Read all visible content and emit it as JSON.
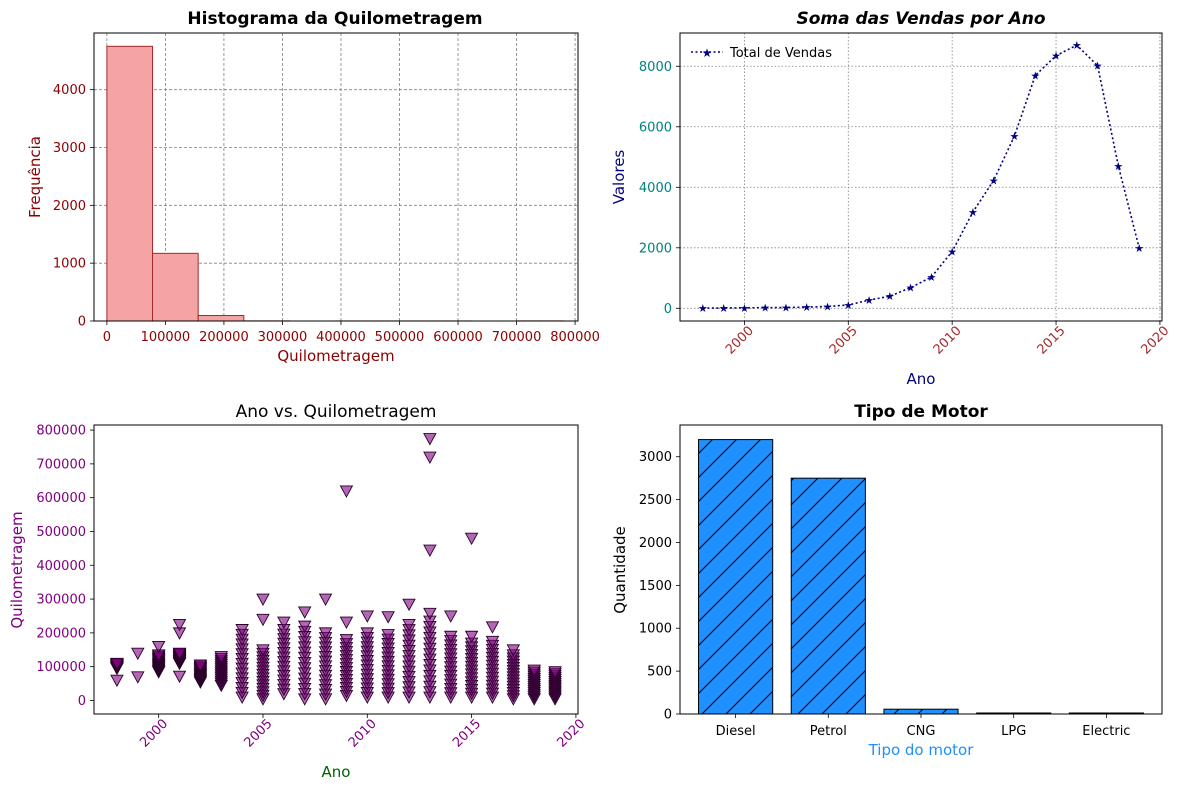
{
  "chart_data": [
    {
      "type": "bar",
      "variant": "histogram",
      "title": "Histograma da Quilometragem",
      "xlabel": "Quilometragem",
      "ylabel": "Frequência",
      "bins": [
        {
          "start": 0,
          "end": 78000,
          "count": 4750
        },
        {
          "start": 78000,
          "end": 156000,
          "count": 1170
        },
        {
          "start": 156000,
          "end": 234000,
          "count": 95
        },
        {
          "start": 234000,
          "end": 312000,
          "count": 2
        },
        {
          "start": 312000,
          "end": 390000,
          "count": 0
        },
        {
          "start": 390000,
          "end": 468000,
          "count": 1
        },
        {
          "start": 468000,
          "end": 546000,
          "count": 1
        },
        {
          "start": 546000,
          "end": 624000,
          "count": 1
        },
        {
          "start": 624000,
          "end": 702000,
          "count": 0
        },
        {
          "start": 702000,
          "end": 780000,
          "count": 2
        }
      ],
      "xticks": [
        "0",
        "100000",
        "200000",
        "300000",
        "400000",
        "500000",
        "600000",
        "700000",
        "800000"
      ],
      "yticks": [
        "0",
        "1000",
        "2000",
        "3000",
        "4000"
      ],
      "xlim": [
        -22000,
        805000
      ],
      "ylim": [
        0,
        4980
      ],
      "grid": true,
      "bar_color": "#f4a4a4",
      "edge_color": "#a52a2a",
      "tick_color": "#8b0000"
    },
    {
      "type": "line",
      "title": "Soma das Vendas por Ano",
      "xlabel": "Ano",
      "ylabel": "Valores",
      "legend_position": "top-left",
      "series": [
        {
          "name": "Total de Vendas",
          "x": [
            1998,
            1999,
            2000,
            2001,
            2002,
            2003,
            2004,
            2005,
            2006,
            2007,
            2008,
            2009,
            2010,
            2011,
            2012,
            2013,
            2014,
            2015,
            2016,
            2017,
            2018,
            2019
          ],
          "y": [
            5,
            10,
            15,
            18,
            25,
            40,
            60,
            110,
            270,
            400,
            680,
            1030,
            1880,
            3180,
            4230,
            5700,
            7700,
            8350,
            8700,
            8020,
            4700,
            2000
          ]
        }
      ],
      "xticks": [
        "2000",
        "2005",
        "2010",
        "2015",
        "2020"
      ],
      "yticks": [
        "0",
        "2000",
        "4000",
        "6000",
        "8000"
      ],
      "xlim": [
        1996.9,
        2020.1
      ],
      "ylim": [
        -420,
        9100
      ],
      "grid": true,
      "line_color": "#000080",
      "ytick_color": "#008080",
      "xtick_color": "#a52a2a"
    },
    {
      "type": "scatter",
      "title": "Ano vs. Quilometragem",
      "xlabel": "Ano",
      "ylabel": "Quilometragem",
      "xticks": [
        "2000",
        "2005",
        "2010",
        "2015",
        "2020"
      ],
      "yticks": [
        "0",
        "100000",
        "200000",
        "300000",
        "400000",
        "500000",
        "600000",
        "700000",
        "800000"
      ],
      "xlim": [
        1996.9,
        2020.1
      ],
      "ylim": [
        -40000,
        815000
      ],
      "grid": false,
      "marker_color": "#800080",
      "outliers": [
        {
          "x": 2013,
          "y": 775000
        },
        {
          "x": 2013,
          "y": 720000
        },
        {
          "x": 2009,
          "y": 620000
        },
        {
          "x": 2015,
          "y": 480000
        },
        {
          "x": 2013,
          "y": 445000
        },
        {
          "x": 2005,
          "y": 300000
        },
        {
          "x": 2008,
          "y": 300000
        },
        {
          "x": 2012,
          "y": 285000
        },
        {
          "x": 2007,
          "y": 262000
        },
        {
          "x": 2010,
          "y": 250000
        },
        {
          "x": 2011,
          "y": 248000
        },
        {
          "x": 2014,
          "y": 250000
        },
        {
          "x": 2013,
          "y": 258000
        },
        {
          "x": 2001,
          "y": 225000
        },
        {
          "x": 2001,
          "y": 200000
        },
        {
          "x": 2000,
          "y": 160000
        },
        {
          "x": 1999,
          "y": 140000
        },
        {
          "x": 1998,
          "y": 60000
        },
        {
          "x": 1999,
          "y": 70000
        },
        {
          "x": 2001,
          "y": 72000
        },
        {
          "x": 2016,
          "y": 218000
        },
        {
          "x": 2015,
          "y": 190000
        },
        {
          "x": 2017,
          "y": 150000
        },
        {
          "x": 2005,
          "y": 240000
        },
        {
          "x": 2006,
          "y": 232000
        },
        {
          "x": 2009,
          "y": 232000
        }
      ],
      "year_ranges": [
        {
          "x": 1998,
          "lo": 95000,
          "hi": 110000
        },
        {
          "x": 2000,
          "lo": 85000,
          "hi": 135000
        },
        {
          "x": 2001,
          "lo": 110000,
          "hi": 140000
        },
        {
          "x": 2002,
          "lo": 55000,
          "hi": 105000
        },
        {
          "x": 2003,
          "lo": 45000,
          "hi": 130000
        },
        {
          "x": 2004,
          "lo": 10000,
          "hi": 210000
        },
        {
          "x": 2005,
          "lo": 5000,
          "hi": 150000
        },
        {
          "x": 2006,
          "lo": 20000,
          "hi": 210000
        },
        {
          "x": 2007,
          "lo": 5000,
          "hi": 220000
        },
        {
          "x": 2008,
          "lo": 5000,
          "hi": 200000
        },
        {
          "x": 2009,
          "lo": 15000,
          "hi": 180000
        },
        {
          "x": 2010,
          "lo": 10000,
          "hi": 200000
        },
        {
          "x": 2011,
          "lo": 10000,
          "hi": 195000
        },
        {
          "x": 2012,
          "lo": 10000,
          "hi": 225000
        },
        {
          "x": 2013,
          "lo": 10000,
          "hi": 235000
        },
        {
          "x": 2014,
          "lo": 10000,
          "hi": 190000
        },
        {
          "x": 2015,
          "lo": 10000,
          "hi": 170000
        },
        {
          "x": 2016,
          "lo": 10000,
          "hi": 175000
        },
        {
          "x": 2017,
          "lo": 5000,
          "hi": 135000
        },
        {
          "x": 2018,
          "lo": 5000,
          "hi": 90000
        },
        {
          "x": 2019,
          "lo": 5000,
          "hi": 85000
        }
      ]
    },
    {
      "type": "bar",
      "title": "Tipo de Motor",
      "xlabel": "Tipo do motor",
      "ylabel": "Quantidade",
      "categories": [
        "Diesel",
        "Petrol",
        "CNG",
        "LPG",
        "Electric"
      ],
      "values": [
        3200,
        2750,
        56,
        10,
        2
      ],
      "yticks": [
        "0",
        "500",
        "1000",
        "1500",
        "2000",
        "2500",
        "3000"
      ],
      "ylim": [
        0,
        3370
      ],
      "grid": false,
      "bar_color": "#1e90ff",
      "hatch": "/",
      "xlabel_color": "#1e90ff"
    }
  ]
}
